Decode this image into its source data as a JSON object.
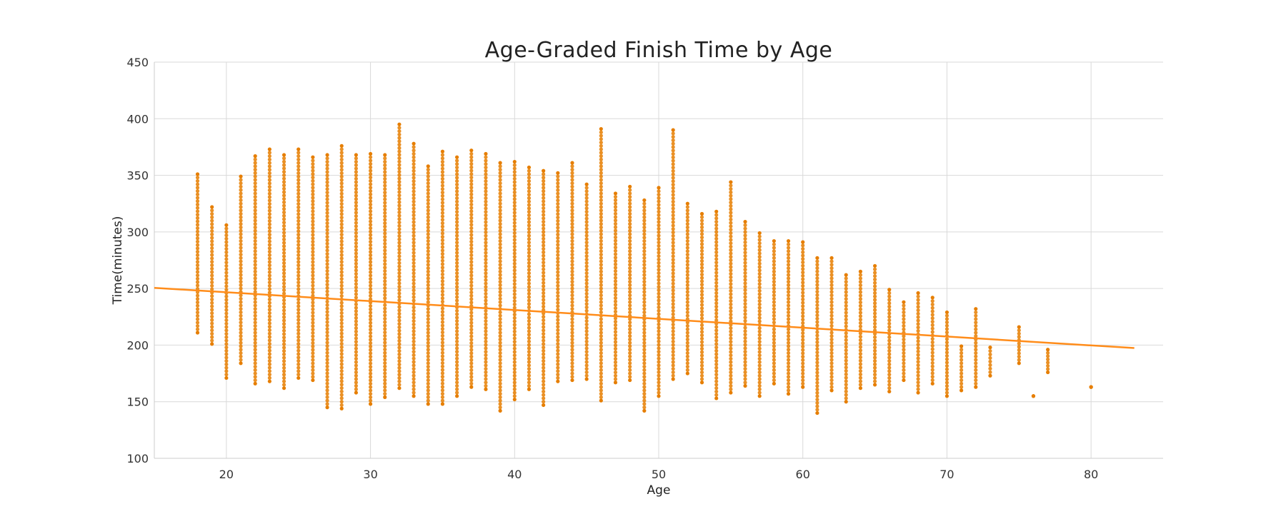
{
  "chart_data": {
    "type": "scatter",
    "title": "Age-Graded Finish Time by Age",
    "xlabel": "Age",
    "ylabel": "Time(minutes)",
    "xlim": [
      15,
      85
    ],
    "ylim": [
      100,
      450
    ],
    "xticks": [
      20,
      30,
      40,
      50,
      60,
      70,
      80
    ],
    "yticks": [
      100,
      150,
      200,
      250,
      300,
      350,
      400,
      450
    ],
    "grid": true,
    "legend": "none",
    "colors": {
      "points": "#e67e00",
      "trend": "#ff8c1a"
    },
    "series": [
      {
        "marker": "dot",
        "columns": [
          [
            18,
            211,
            351
          ],
          [
            19,
            201,
            322
          ],
          [
            20,
            171,
            306
          ],
          [
            21,
            184,
            349
          ],
          [
            22,
            166,
            367
          ],
          [
            23,
            168,
            373
          ],
          [
            24,
            162,
            368
          ],
          [
            25,
            171,
            373
          ],
          [
            26,
            169,
            366
          ],
          [
            27,
            145,
            368
          ],
          [
            28,
            144,
            376
          ],
          [
            29,
            158,
            368
          ],
          [
            30,
            148,
            369
          ],
          [
            31,
            154,
            368
          ],
          [
            32,
            162,
            395
          ],
          [
            33,
            155,
            378
          ],
          [
            34,
            148,
            358
          ],
          [
            35,
            148,
            371
          ],
          [
            36,
            155,
            366
          ],
          [
            37,
            163,
            372
          ],
          [
            38,
            161,
            369
          ],
          [
            39,
            142,
            361
          ],
          [
            40,
            152,
            362
          ],
          [
            41,
            161,
            357
          ],
          [
            42,
            147,
            354
          ],
          [
            43,
            168,
            352
          ],
          [
            44,
            169,
            361
          ],
          [
            45,
            170,
            342
          ],
          [
            46,
            151,
            391
          ],
          [
            47,
            167,
            334
          ],
          [
            48,
            169,
            340
          ],
          [
            49,
            142,
            328
          ],
          [
            50,
            155,
            339
          ],
          [
            51,
            170,
            390
          ],
          [
            52,
            175,
            325
          ],
          [
            53,
            167,
            316
          ],
          [
            54,
            153,
            318
          ],
          [
            55,
            158,
            344
          ],
          [
            56,
            164,
            309
          ],
          [
            57,
            155,
            299
          ],
          [
            58,
            166,
            292
          ],
          [
            59,
            157,
            292
          ],
          [
            60,
            163,
            291
          ],
          [
            61,
            140,
            277
          ],
          [
            62,
            160,
            277
          ],
          [
            63,
            150,
            262
          ],
          [
            64,
            162,
            265
          ],
          [
            65,
            165,
            270
          ],
          [
            66,
            159,
            249
          ],
          [
            67,
            169,
            238
          ],
          [
            68,
            158,
            246
          ],
          [
            69,
            166,
            242
          ],
          [
            70,
            155,
            229
          ],
          [
            71,
            160,
            199
          ],
          [
            72,
            163,
            232
          ],
          [
            73,
            173,
            198
          ],
          [
            75,
            184,
            216
          ],
          [
            76,
            155,
            155
          ],
          [
            77,
            176,
            196
          ],
          [
            80,
            163,
            163
          ]
        ]
      }
    ],
    "trendline": {
      "x": [
        15,
        83
      ],
      "y": [
        250.6,
        197.4
      ]
    }
  }
}
